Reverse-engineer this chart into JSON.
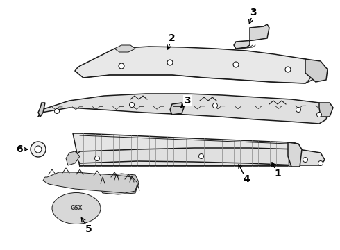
{
  "background_color": "#ffffff",
  "line_color": "#1a1a1a",
  "figsize": [
    4.9,
    3.6
  ],
  "dpi": 100,
  "label_fontsize": 10,
  "parts": {
    "panel2_color": "#e0e0e0",
    "panel3_color": "#d8d8d8",
    "grille_color": "#cccccc",
    "bracket_color": "#d0d0d0"
  }
}
